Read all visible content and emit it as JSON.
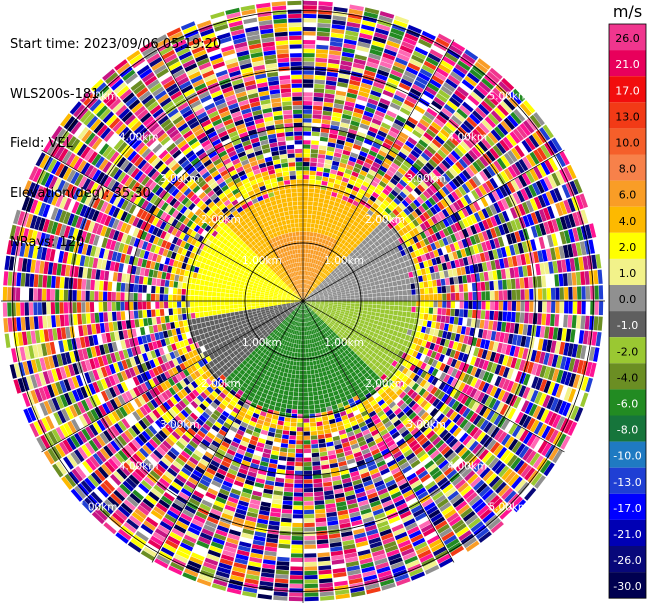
{
  "metadata": {
    "start_time": "Start time: 2023/09/06 05:19:20",
    "instrument": "WLS200s-181",
    "field": "Field: VEL",
    "elevation": "Elevation(deg): 35.30",
    "nrays": "NRays: 120"
  },
  "colorbar": {
    "unit": "m/s",
    "ticks": [
      "26.0",
      "21.0",
      "17.0",
      "13.0",
      "10.0",
      "8.0",
      "6.0",
      "4.0",
      "2.0",
      "1.0",
      "0.0",
      "-1.0",
      "-2.0",
      "-4.0",
      "-6.0",
      "-8.0",
      "-10.0",
      "-13.0",
      "-17.0",
      "-21.0",
      "-26.0",
      "-30.0"
    ],
    "colors": [
      "#f0368e",
      "#e8005b",
      "#f20d0d",
      "#f23a16",
      "#f55f2a",
      "#f7814a",
      "#f99d26",
      "#fdb900",
      "#ffff00",
      "#f2f28a",
      "#909090",
      "#5f5f5f",
      "#9ac832",
      "#6b8e23",
      "#228b22",
      "#16753b",
      "#1f7ac2",
      "#1f3fd4",
      "#0000ff",
      "#0000b4",
      "#08087a",
      "#000050"
    ]
  },
  "chart_data": {
    "type": "ppi",
    "field": "VEL",
    "unit": "m/s",
    "nrays": 120,
    "elevation_deg": 35.3,
    "range_ring_labels": [
      "1.00km",
      "2.00km",
      "3.00km",
      "4.00km",
      "5.00km"
    ],
    "range_rings_km": [
      1,
      2,
      3,
      4,
      5
    ],
    "max_range_km": 5.2,
    "azimuth_spokes_deg": [
      0,
      30,
      60,
      90,
      120,
      150,
      180,
      210,
      240,
      270,
      300,
      330
    ],
    "sectors": [
      {
        "azimuth_from": 315,
        "azimuth_to": 45,
        "range_km": [
          0.0,
          2.0
        ],
        "velocity_ms": 4.0
      },
      {
        "azimuth_from": 330,
        "azimuth_to": 30,
        "range_km": [
          0.0,
          1.2
        ],
        "velocity_ms": 6.0
      },
      {
        "azimuth_from": 300,
        "azimuth_to": 315,
        "range_km": [
          0.0,
          2.0
        ],
        "velocity_ms": 2.0
      },
      {
        "azimuth_from": 45,
        "azimuth_to": 90,
        "range_km": [
          0.0,
          2.0
        ],
        "velocity_ms": 0.0
      },
      {
        "azimuth_from": 90,
        "azimuth_to": 135,
        "range_km": [
          0.0,
          2.0
        ],
        "velocity_ms": -2.0
      },
      {
        "azimuth_from": 135,
        "azimuth_to": 225,
        "range_km": [
          0.0,
          2.0
        ],
        "velocity_ms": -6.0
      },
      {
        "azimuth_from": 225,
        "azimuth_to": 260,
        "range_km": [
          0.0,
          2.0
        ],
        "velocity_ms": -1.0
      },
      {
        "azimuth_from": 260,
        "azimuth_to": 300,
        "range_km": [
          0.0,
          2.0
        ],
        "velocity_ms": 2.0
      }
    ],
    "noise_beyond_km": 2.3
  }
}
